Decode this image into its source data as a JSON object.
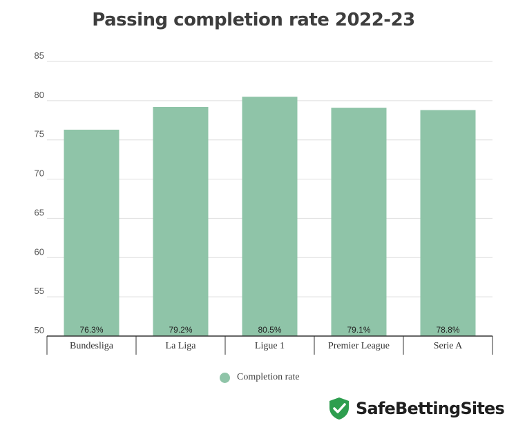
{
  "chart_data": {
    "type": "bar",
    "title": "Passing completion rate 2022-23",
    "categories": [
      "Bundesliga",
      "La Liga",
      "Ligue 1",
      "Premier League",
      "Serie A"
    ],
    "series": [
      {
        "name": "Completion rate",
        "values": [
          76.3,
          79.2,
          80.5,
          79.1,
          78.8
        ],
        "labels": [
          "76.3%",
          "79.2%",
          "80.5%",
          "79.1%",
          "78.8%"
        ],
        "color": "#8fc4a8"
      }
    ],
    "xlabel": "",
    "ylabel": "",
    "ylim": [
      50,
      85
    ],
    "yticks": [
      50,
      55,
      60,
      65,
      70,
      75,
      80,
      85
    ],
    "grid": true,
    "legend": "bottom-center"
  },
  "brand": {
    "name": "SafeBettingSites",
    "icon": "shield-check-icon",
    "color": "#2e9e4f"
  }
}
